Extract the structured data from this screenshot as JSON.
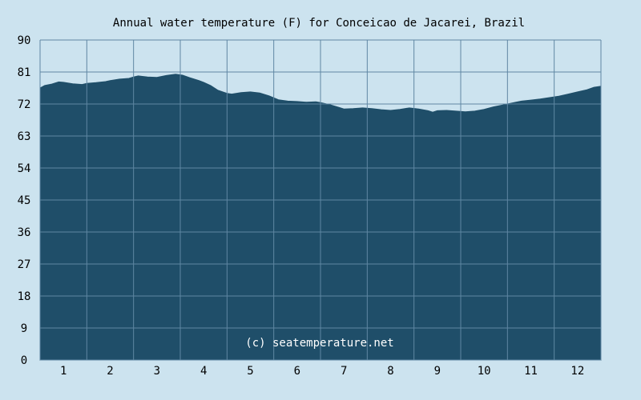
{
  "chart_data": {
    "type": "area",
    "title": "Annual water temperature (F) for Conceicao de Jacarei, Brazil",
    "xlabel": "",
    "ylabel": "",
    "x_ticks": [
      "1",
      "2",
      "3",
      "4",
      "5",
      "6",
      "7",
      "8",
      "9",
      "10",
      "11",
      "12"
    ],
    "y_ticks": [
      "0",
      "9",
      "18",
      "27",
      "36",
      "45",
      "54",
      "63",
      "72",
      "81",
      "90"
    ],
    "xlim": [
      0.5,
      12.5
    ],
    "ylim": [
      0,
      90
    ],
    "grid": true,
    "series": [
      {
        "x": [
          0.5,
          0.6,
          0.75,
          0.9,
          1.0,
          1.2,
          1.4,
          1.5,
          1.7,
          1.9,
          2.0,
          2.2,
          2.4,
          2.5,
          2.6,
          2.8,
          3.0,
          3.2,
          3.4,
          3.55,
          3.7,
          3.9,
          4.0,
          4.15,
          4.3,
          4.5,
          4.6,
          4.8,
          5.0,
          5.2,
          5.4,
          5.6,
          5.8,
          6.0,
          6.2,
          6.4,
          6.5,
          6.7,
          6.9,
          7.0,
          7.2,
          7.4,
          7.6,
          7.8,
          8.0,
          8.2,
          8.4,
          8.6,
          8.8,
          8.9,
          9.0,
          9.2,
          9.4,
          9.6,
          9.8,
          10.0,
          10.2,
          10.4,
          10.6,
          10.8,
          11.0,
          11.2,
          11.4,
          11.6,
          11.8,
          12.0,
          12.2,
          12.35,
          12.5
        ],
        "values": [
          76.5,
          77.2,
          77.6,
          78.2,
          78.1,
          77.7,
          77.5,
          77.8,
          78.0,
          78.3,
          78.6,
          79.0,
          79.2,
          79.6,
          79.9,
          79.6,
          79.5,
          80.0,
          80.4,
          80.1,
          79.4,
          78.6,
          78.1,
          77.2,
          75.9,
          75.0,
          74.8,
          75.2,
          75.4,
          75.1,
          74.3,
          73.2,
          72.8,
          72.7,
          72.5,
          72.6,
          72.4,
          71.8,
          71.0,
          70.6,
          70.7,
          70.9,
          70.7,
          70.4,
          70.2,
          70.5,
          70.9,
          70.6,
          70.1,
          69.7,
          70.1,
          70.2,
          70.0,
          69.8,
          70.0,
          70.5,
          71.2,
          71.7,
          72.3,
          72.8,
          73.1,
          73.4,
          73.8,
          74.2,
          74.8,
          75.4,
          76.0,
          76.7,
          77.0
        ]
      }
    ]
  },
  "credit": "(c) seatemperature.net",
  "colors": {
    "background": "#cce3ef",
    "fill": "#1f4e69",
    "grid": "#5f87a3",
    "credit_text": "#ffffff"
  }
}
